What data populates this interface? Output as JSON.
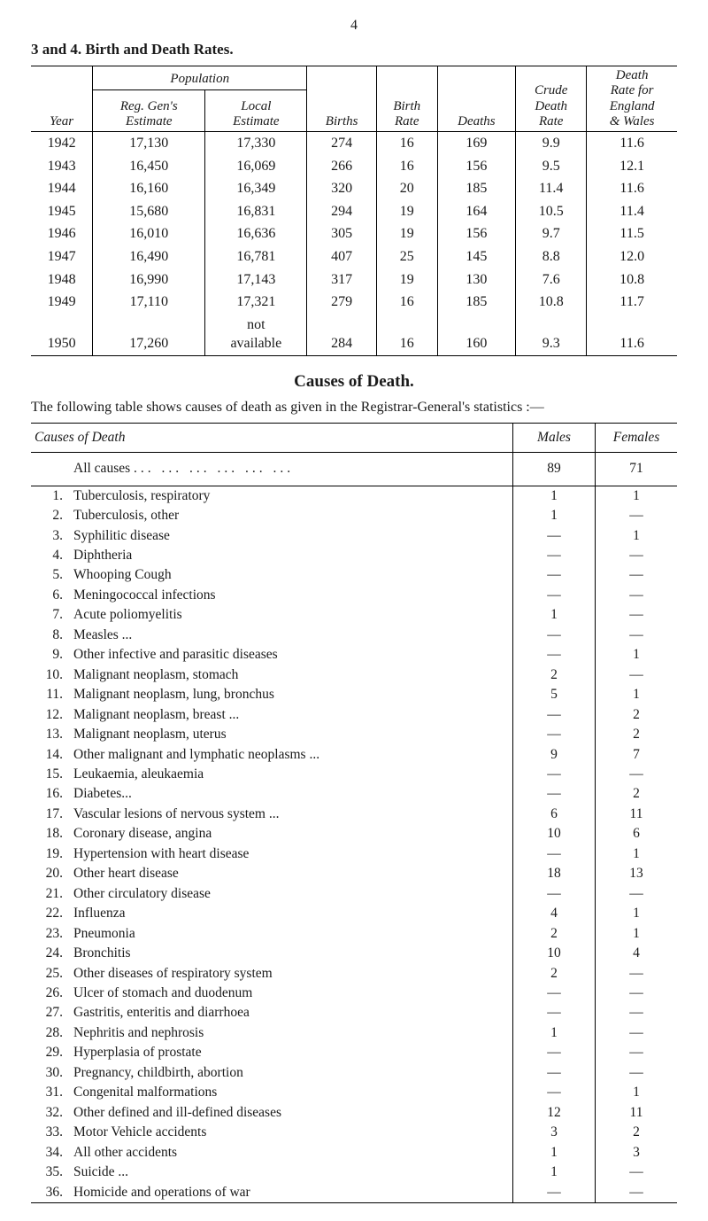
{
  "page_number": "4",
  "section_heading": "3 and 4.  Birth and Death Rates.",
  "table1": {
    "headers": {
      "population": "Population",
      "reg_gen": "Reg. Gen's\nEstimate",
      "local": "Local\nEstimate",
      "year": "Year",
      "births": "Births",
      "birth_rate": "Birth\nRate",
      "deaths": "Deaths",
      "crude": "Crude\nDeath\nRate",
      "eng_wales": "Death\nRate for\nEngland\n& Wales"
    },
    "rows": [
      {
        "year": "1942",
        "reg": "17,130",
        "local": "17,330",
        "births": "274",
        "brate": "16",
        "deaths": "169",
        "crude": "9.9",
        "ew": "11.6"
      },
      {
        "year": "1943",
        "reg": "16,450",
        "local": "16,069",
        "births": "266",
        "brate": "16",
        "deaths": "156",
        "crude": "9.5",
        "ew": "12.1"
      },
      {
        "year": "1944",
        "reg": "16,160",
        "local": "16,349",
        "births": "320",
        "brate": "20",
        "deaths": "185",
        "crude": "11.4",
        "ew": "11.6"
      },
      {
        "year": "1945",
        "reg": "15,680",
        "local": "16,831",
        "births": "294",
        "brate": "19",
        "deaths": "164",
        "crude": "10.5",
        "ew": "11.4"
      },
      {
        "year": "1946",
        "reg": "16,010",
        "local": "16,636",
        "births": "305",
        "brate": "19",
        "deaths": "156",
        "crude": "9.7",
        "ew": "11.5"
      },
      {
        "year": "1947",
        "reg": "16,490",
        "local": "16,781",
        "births": "407",
        "brate": "25",
        "deaths": "145",
        "crude": "8.8",
        "ew": "12.0"
      },
      {
        "year": "1948",
        "reg": "16,990",
        "local": "17,143",
        "births": "317",
        "brate": "19",
        "deaths": "130",
        "crude": "7.6",
        "ew": "10.8"
      },
      {
        "year": "1949",
        "reg": "17,110",
        "local": "17,321",
        "births": "279",
        "brate": "16",
        "deaths": "185",
        "crude": "10.8",
        "ew": "11.7"
      },
      {
        "year": "1950",
        "reg": "17,260",
        "local": "not\navailable",
        "births": "284",
        "brate": "16",
        "deaths": "160",
        "crude": "9.3",
        "ew": "11.6"
      }
    ]
  },
  "causes_title": "Causes of Death.",
  "intro": "The following table shows causes of death as given in the Registrar-General's statistics :—",
  "table2": {
    "headers": {
      "causes": "Causes of Death",
      "males": "Males",
      "females": "Females"
    },
    "all_causes": {
      "label": "All causes",
      "males": "89",
      "females": "71"
    },
    "rows": [
      {
        "n": "1.",
        "label": "Tuberculosis, respiratory",
        "m": "1",
        "f": "1"
      },
      {
        "n": "2.",
        "label": "Tuberculosis, other",
        "m": "1",
        "f": "—"
      },
      {
        "n": "3.",
        "label": "Syphilitic disease",
        "m": "—",
        "f": "1"
      },
      {
        "n": "4.",
        "label": "Diphtheria",
        "m": "—",
        "f": "—"
      },
      {
        "n": "5.",
        "label": "Whooping Cough",
        "m": "—",
        "f": "—"
      },
      {
        "n": "6.",
        "label": "Meningococcal infections",
        "m": "—",
        "f": "—"
      },
      {
        "n": "7.",
        "label": "Acute poliomyelitis",
        "m": "1",
        "f": "—"
      },
      {
        "n": "8.",
        "label": "Measles ...",
        "m": "—",
        "f": "—"
      },
      {
        "n": "9.",
        "label": "Other infective and parasitic diseases",
        "m": "—",
        "f": "1"
      },
      {
        "n": "10.",
        "label": "Malignant neoplasm, stomach",
        "m": "2",
        "f": "—"
      },
      {
        "n": "11.",
        "label": "Malignant neoplasm, lung, bronchus",
        "m": "5",
        "f": "1"
      },
      {
        "n": "12.",
        "label": "Malignant neoplasm, breast  ...",
        "m": "—",
        "f": "2"
      },
      {
        "n": "13.",
        "label": "Malignant neoplasm, uterus",
        "m": "—",
        "f": "2"
      },
      {
        "n": "14.",
        "label": "Other malignant and lymphatic neoplasms ...",
        "m": "9",
        "f": "7"
      },
      {
        "n": "15.",
        "label": "Leukaemia, aleukaemia",
        "m": "—",
        "f": "—"
      },
      {
        "n": "16.",
        "label": "Diabetes...",
        "m": "—",
        "f": "2"
      },
      {
        "n": "17.",
        "label": "Vascular lesions of nervous system  ...",
        "m": "6",
        "f": "11"
      },
      {
        "n": "18.",
        "label": "Coronary disease, angina",
        "m": "10",
        "f": "6"
      },
      {
        "n": "19.",
        "label": "Hypertension with heart disease",
        "m": "—",
        "f": "1"
      },
      {
        "n": "20.",
        "label": "Other heart disease",
        "m": "18",
        "f": "13"
      },
      {
        "n": "21.",
        "label": "Other circulatory disease",
        "m": "—",
        "f": "—"
      },
      {
        "n": "22.",
        "label": "Influenza",
        "m": "4",
        "f": "1"
      },
      {
        "n": "23.",
        "label": "Pneumonia",
        "m": "2",
        "f": "1"
      },
      {
        "n": "24.",
        "label": "Bronchitis",
        "m": "10",
        "f": "4"
      },
      {
        "n": "25.",
        "label": "Other diseases of respiratory system",
        "m": "2",
        "f": "—"
      },
      {
        "n": "26.",
        "label": "Ulcer of stomach and duodenum",
        "m": "—",
        "f": "—"
      },
      {
        "n": "27.",
        "label": "Gastritis, enteritis and diarrhoea",
        "m": "—",
        "f": "—"
      },
      {
        "n": "28.",
        "label": "Nephritis and nephrosis",
        "m": "1",
        "f": "—"
      },
      {
        "n": "29.",
        "label": "Hyperplasia of prostate",
        "m": "—",
        "f": "—"
      },
      {
        "n": "30.",
        "label": "Pregnancy, childbirth, abortion",
        "m": "—",
        "f": "—"
      },
      {
        "n": "31.",
        "label": "Congenital malformations",
        "m": "—",
        "f": "1"
      },
      {
        "n": "32.",
        "label": "Other defined and ill-defined diseases",
        "m": "12",
        "f": "11"
      },
      {
        "n": "33.",
        "label": "Motor Vehicle accidents",
        "m": "3",
        "f": "2"
      },
      {
        "n": "34.",
        "label": "All other accidents",
        "m": "1",
        "f": "3"
      },
      {
        "n": "35.",
        "label": "Suicide ...",
        "m": "1",
        "f": "—"
      },
      {
        "n": "36.",
        "label": "Homicide and operations of war",
        "m": "—",
        "f": "—"
      }
    ]
  }
}
